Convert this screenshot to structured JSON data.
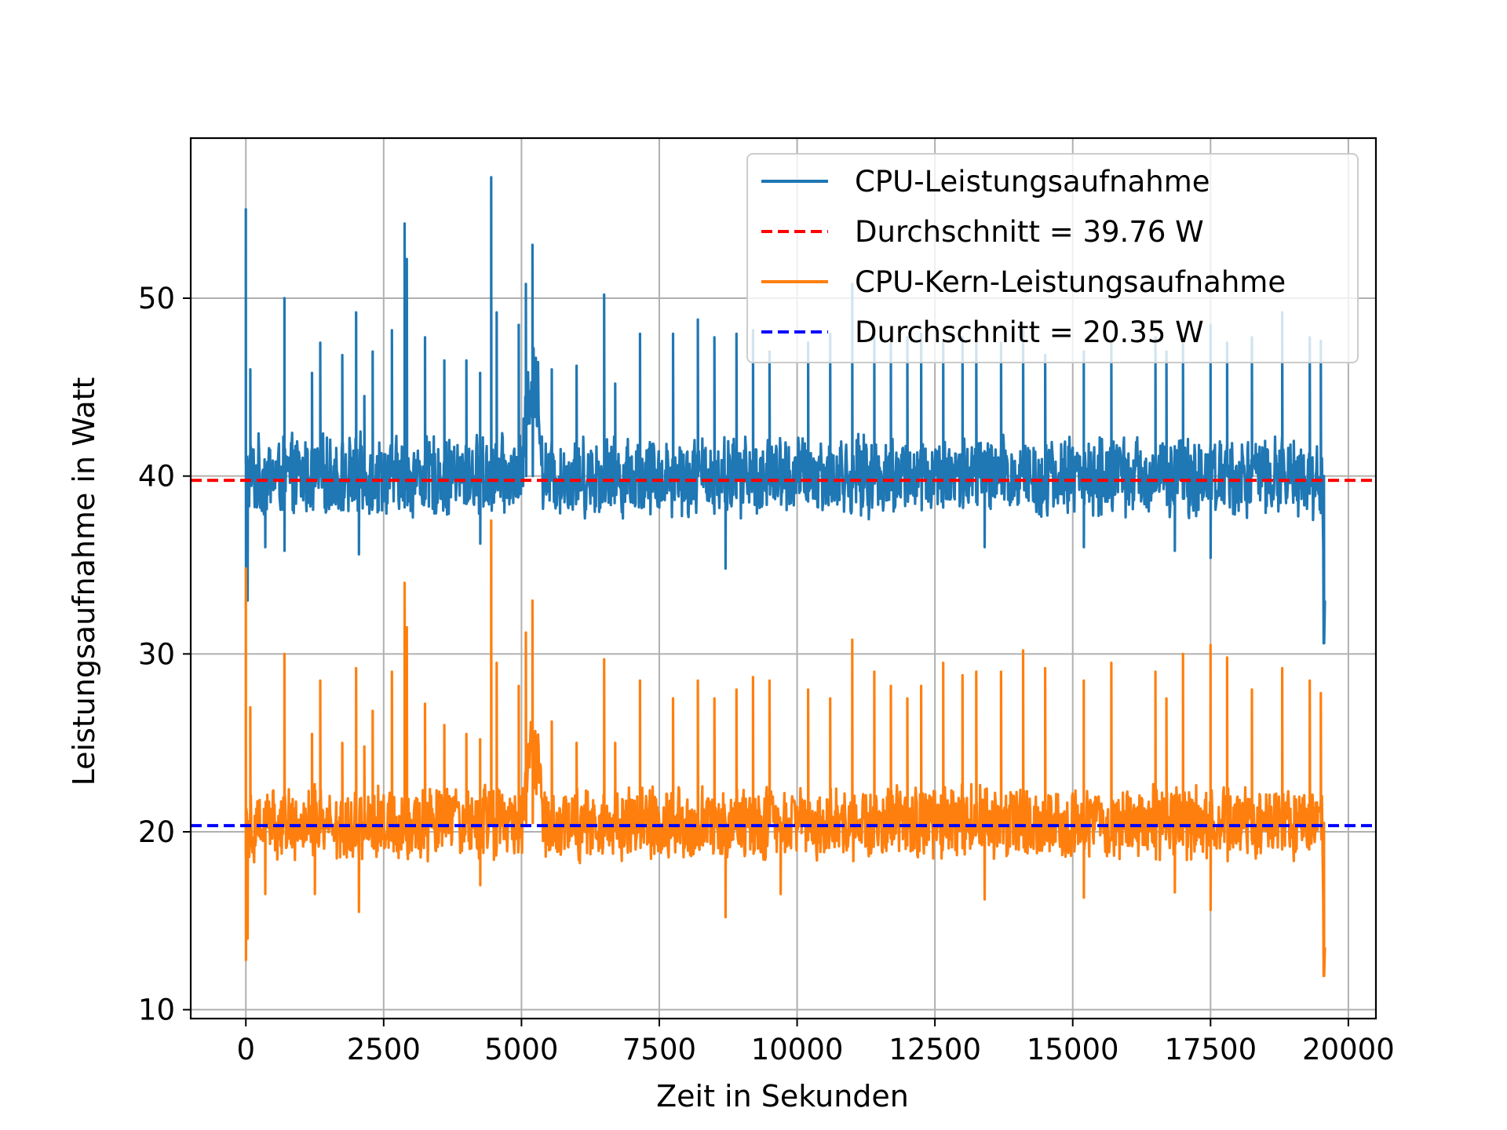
{
  "chart_data": {
    "type": "line",
    "title": "",
    "xlabel": "Zeit in Sekunden",
    "ylabel": "Leistungsaufnahme in Watt",
    "xlim": [
      -1000,
      20500
    ],
    "ylim": [
      9.5,
      59
    ],
    "xticks": [
      0,
      2500,
      5000,
      7500,
      10000,
      12500,
      15000,
      17500,
      20000
    ],
    "yticks": [
      10,
      20,
      30,
      40,
      50
    ],
    "grid": true,
    "legend_position": "top-right",
    "colors": {
      "cpu": "#1f77b4",
      "core": "#ff7f0e",
      "mean_cpu": "#ff0000",
      "mean_core": "#0000ff",
      "grid": "#b0b0b0"
    },
    "series": [
      {
        "name": "CPU-Leistungsaufnahme",
        "style": "solid",
        "color": "#1f77b4",
        "x_range": [
          0,
          19550
        ],
        "baseline_low": 37.5,
        "baseline_high": 42.5,
        "plateau": {
          "x_range": [
            5000,
            5400
          ],
          "low": 42,
          "high": 47.5
        },
        "spikes": [
          {
            "x": 0,
            "y": 55.0
          },
          {
            "x": 80,
            "y": 46.0
          },
          {
            "x": 700,
            "y": 50.0
          },
          {
            "x": 1200,
            "y": 45.8
          },
          {
            "x": 1350,
            "y": 47.5
          },
          {
            "x": 1750,
            "y": 46.8
          },
          {
            "x": 2000,
            "y": 49.2
          },
          {
            "x": 2150,
            "y": 44.5
          },
          {
            "x": 2300,
            "y": 47.0
          },
          {
            "x": 2650,
            "y": 48.2
          },
          {
            "x": 2880,
            "y": 54.2
          },
          {
            "x": 2920,
            "y": 52.2
          },
          {
            "x": 3250,
            "y": 47.8
          },
          {
            "x": 3600,
            "y": 46.5
          },
          {
            "x": 4000,
            "y": 46.5
          },
          {
            "x": 4250,
            "y": 45.8
          },
          {
            "x": 4450,
            "y": 56.8
          },
          {
            "x": 4550,
            "y": 49.2
          },
          {
            "x": 4950,
            "y": 48.5
          },
          {
            "x": 5080,
            "y": 50.8
          },
          {
            "x": 5200,
            "y": 53.0
          },
          {
            "x": 5550,
            "y": 46.0
          },
          {
            "x": 6000,
            "y": 46.2
          },
          {
            "x": 6500,
            "y": 50.2
          },
          {
            "x": 6700,
            "y": 45.2
          },
          {
            "x": 7150,
            "y": 48.0
          },
          {
            "x": 7750,
            "y": 48.0
          },
          {
            "x": 8200,
            "y": 48.8
          },
          {
            "x": 8500,
            "y": 47.8
          },
          {
            "x": 8900,
            "y": 48.0
          },
          {
            "x": 9200,
            "y": 48.2
          },
          {
            "x": 9500,
            "y": 47.0
          },
          {
            "x": 10200,
            "y": 47.5
          },
          {
            "x": 10600,
            "y": 48.0
          },
          {
            "x": 11000,
            "y": 50.8
          },
          {
            "x": 11400,
            "y": 48.0
          },
          {
            "x": 11700,
            "y": 47.5
          },
          {
            "x": 12000,
            "y": 47.8
          },
          {
            "x": 12250,
            "y": 48.0
          },
          {
            "x": 12650,
            "y": 47.5
          },
          {
            "x": 13000,
            "y": 47.8
          },
          {
            "x": 13250,
            "y": 48.2
          },
          {
            "x": 13700,
            "y": 47.5
          },
          {
            "x": 14100,
            "y": 48.2
          },
          {
            "x": 14500,
            "y": 46.8
          },
          {
            "x": 15200,
            "y": 47.0
          },
          {
            "x": 15700,
            "y": 47.5
          },
          {
            "x": 16500,
            "y": 47.8
          },
          {
            "x": 16700,
            "y": 47.0
          },
          {
            "x": 17000,
            "y": 47.5
          },
          {
            "x": 17500,
            "y": 48.5
          },
          {
            "x": 17800,
            "y": 47.5
          },
          {
            "x": 18250,
            "y": 47.8
          },
          {
            "x": 18800,
            "y": 49.2
          },
          {
            "x": 19300,
            "y": 47.8
          },
          {
            "x": 19500,
            "y": 47.6
          }
        ],
        "dips": [
          {
            "x": 0,
            "y": 34.5
          },
          {
            "x": 30,
            "y": 33.0
          },
          {
            "x": 350,
            "y": 36.0
          },
          {
            "x": 700,
            "y": 35.8
          },
          {
            "x": 2050,
            "y": 35.6
          },
          {
            "x": 4250,
            "y": 36.2
          },
          {
            "x": 8700,
            "y": 34.8
          },
          {
            "x": 13400,
            "y": 36.0
          },
          {
            "x": 15200,
            "y": 36.0
          },
          {
            "x": 16850,
            "y": 35.8
          },
          {
            "x": 17500,
            "y": 35.4
          },
          {
            "x": 19550,
            "y": 30.6
          }
        ],
        "end_values": [
          {
            "x": 19520,
            "y": 41.0
          },
          {
            "x": 19545,
            "y": 36.0
          },
          {
            "x": 19560,
            "y": 30.6
          },
          {
            "x": 19575,
            "y": 33.0
          }
        ]
      },
      {
        "name": "Durchschnitt = 39.76 W",
        "style": "dashed",
        "color": "#ff0000",
        "value": 39.76
      },
      {
        "name": "CPU-Kern-Leistungsaufnahme",
        "style": "solid",
        "color": "#ff7f0e",
        "x_range": [
          0,
          19550
        ],
        "baseline_low": 18.2,
        "baseline_high": 22.8,
        "plateau": {
          "x_range": [
            5000,
            5400
          ],
          "low": 21.5,
          "high": 27.0
        },
        "spikes": [
          {
            "x": 0,
            "y": 34.8
          },
          {
            "x": 80,
            "y": 27.0
          },
          {
            "x": 700,
            "y": 30.0
          },
          {
            "x": 1200,
            "y": 25.5
          },
          {
            "x": 1350,
            "y": 28.5
          },
          {
            "x": 1750,
            "y": 25.0
          },
          {
            "x": 2000,
            "y": 29.2
          },
          {
            "x": 2150,
            "y": 24.8
          },
          {
            "x": 2300,
            "y": 26.8
          },
          {
            "x": 2650,
            "y": 29.0
          },
          {
            "x": 2880,
            "y": 34.0
          },
          {
            "x": 2920,
            "y": 31.5
          },
          {
            "x": 3250,
            "y": 27.2
          },
          {
            "x": 3600,
            "y": 26.0
          },
          {
            "x": 4000,
            "y": 25.5
          },
          {
            "x": 4250,
            "y": 25.2
          },
          {
            "x": 4450,
            "y": 37.5
          },
          {
            "x": 4550,
            "y": 29.5
          },
          {
            "x": 4950,
            "y": 28.2
          },
          {
            "x": 5080,
            "y": 31.2
          },
          {
            "x": 5200,
            "y": 33.0
          },
          {
            "x": 5550,
            "y": 26.2
          },
          {
            "x": 6000,
            "y": 25.0
          },
          {
            "x": 6500,
            "y": 29.7
          },
          {
            "x": 6700,
            "y": 25.0
          },
          {
            "x": 7150,
            "y": 28.5
          },
          {
            "x": 7750,
            "y": 27.5
          },
          {
            "x": 8200,
            "y": 28.5
          },
          {
            "x": 8500,
            "y": 27.5
          },
          {
            "x": 8900,
            "y": 28.0
          },
          {
            "x": 9200,
            "y": 28.7
          },
          {
            "x": 9500,
            "y": 28.5
          },
          {
            "x": 10200,
            "y": 28.0
          },
          {
            "x": 10600,
            "y": 27.5
          },
          {
            "x": 11000,
            "y": 30.8
          },
          {
            "x": 11400,
            "y": 29.0
          },
          {
            "x": 11700,
            "y": 28.2
          },
          {
            "x": 12000,
            "y": 27.5
          },
          {
            "x": 12250,
            "y": 28.2
          },
          {
            "x": 12650,
            "y": 29.5
          },
          {
            "x": 13000,
            "y": 28.8
          },
          {
            "x": 13250,
            "y": 29.0
          },
          {
            "x": 13700,
            "y": 29.0
          },
          {
            "x": 14100,
            "y": 30.2
          },
          {
            "x": 14500,
            "y": 29.2
          },
          {
            "x": 15200,
            "y": 28.5
          },
          {
            "x": 15700,
            "y": 29.5
          },
          {
            "x": 16500,
            "y": 29.0
          },
          {
            "x": 16700,
            "y": 27.5
          },
          {
            "x": 17000,
            "y": 30.0
          },
          {
            "x": 17500,
            "y": 30.5
          },
          {
            "x": 17800,
            "y": 29.8
          },
          {
            "x": 18250,
            "y": 28.0
          },
          {
            "x": 18800,
            "y": 29.2
          },
          {
            "x": 19300,
            "y": 28.5
          },
          {
            "x": 19500,
            "y": 27.8
          }
        ],
        "dips": [
          {
            "x": 0,
            "y": 12.8
          },
          {
            "x": 30,
            "y": 14.0
          },
          {
            "x": 350,
            "y": 16.5
          },
          {
            "x": 1250,
            "y": 16.5
          },
          {
            "x": 2050,
            "y": 15.5
          },
          {
            "x": 4250,
            "y": 17.0
          },
          {
            "x": 8700,
            "y": 15.2
          },
          {
            "x": 9700,
            "y": 16.5
          },
          {
            "x": 13400,
            "y": 16.2
          },
          {
            "x": 15200,
            "y": 16.3
          },
          {
            "x": 16850,
            "y": 16.6
          },
          {
            "x": 17500,
            "y": 15.6
          },
          {
            "x": 19550,
            "y": 11.9
          }
        ],
        "end_values": [
          {
            "x": 19520,
            "y": 22.0
          },
          {
            "x": 19545,
            "y": 16.0
          },
          {
            "x": 19560,
            "y": 11.9
          },
          {
            "x": 19575,
            "y": 13.5
          }
        ]
      },
      {
        "name": "Durchschnitt = 20.35 W",
        "style": "dashed",
        "color": "#0000ff",
        "value": 20.35
      }
    ]
  }
}
